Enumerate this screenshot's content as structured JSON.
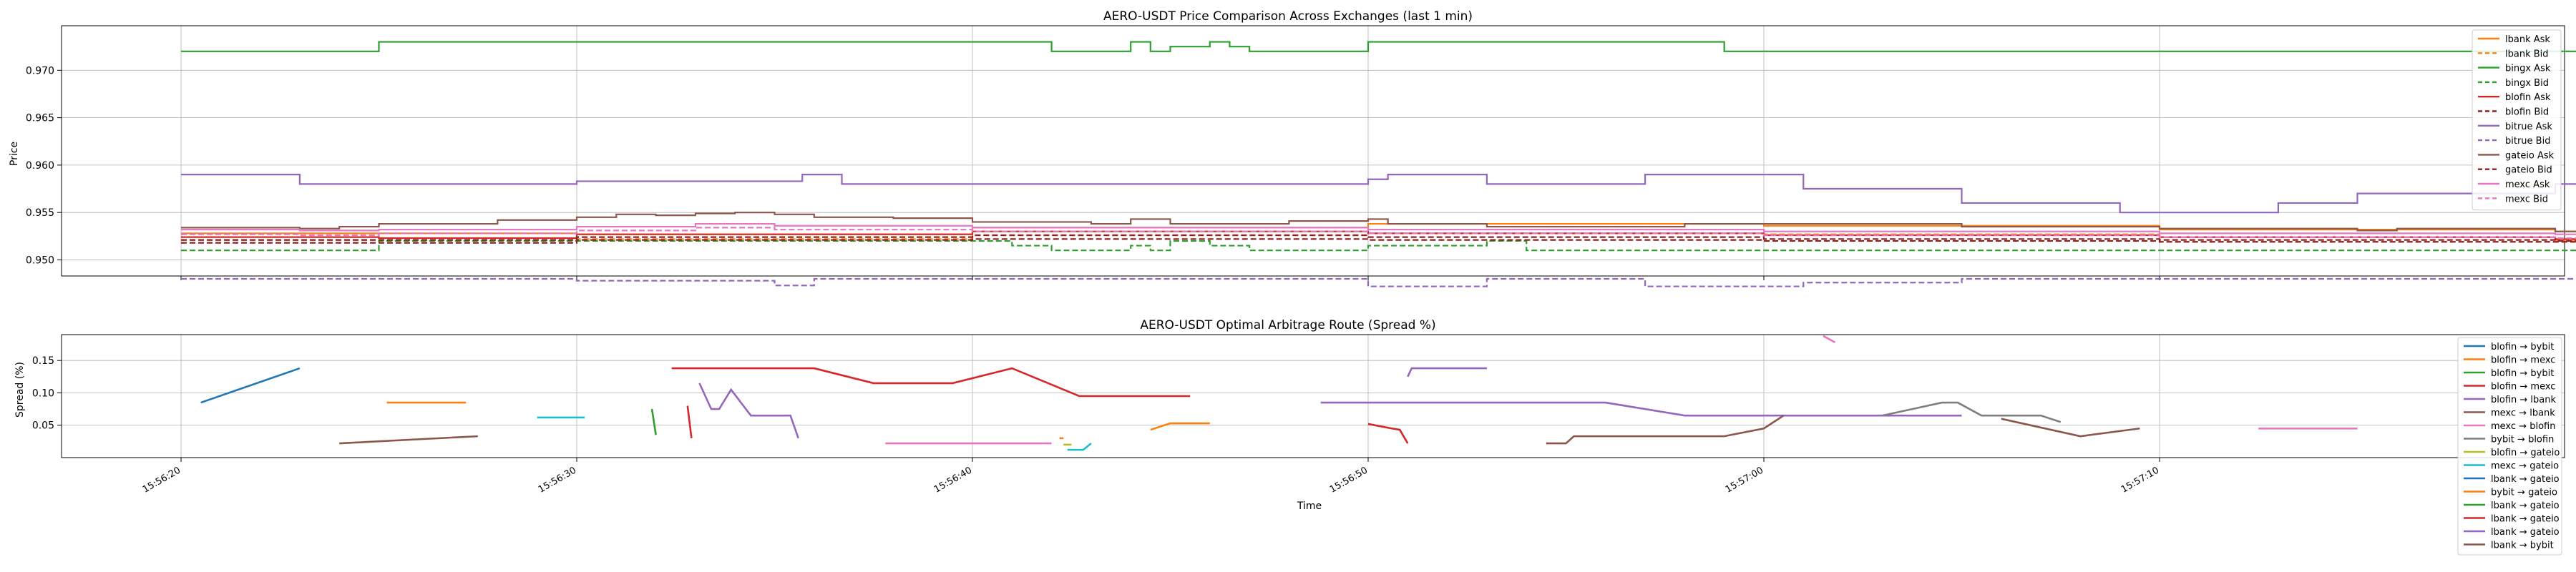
{
  "chart_data": [
    {
      "type": "line",
      "title": "AERO-USDT Price Comparison Across Exchanges (last 1 min)",
      "xlabel": "",
      "ylabel": "Price",
      "ylim": [
        0.9483,
        0.9747
      ],
      "yticks": [
        0.95,
        0.955,
        0.96,
        0.965,
        0.97
      ],
      "ytick_labels": [
        "0.950",
        "0.955",
        "0.960",
        "0.965",
        "0.970"
      ],
      "grid": true,
      "legend_position": "top-right",
      "series": [
        {
          "name": "lbank Ask",
          "color": "#ff7f0e",
          "dash": false,
          "x": [
            0,
            10,
            20,
            30,
            40,
            50,
            60,
            70,
            79
          ],
          "y": [
            0.9528,
            0.9527,
            0.9534,
            0.9538,
            0.9536,
            0.9532,
            0.953,
            0.9526,
            0.9524
          ]
        },
        {
          "name": "lbank Bid",
          "color": "#ff7f0e",
          "dash": true,
          "x": [
            0,
            10,
            20,
            30,
            40,
            50,
            60,
            70,
            79
          ],
          "y": [
            0.9521,
            0.9522,
            0.9526,
            0.9528,
            0.9527,
            0.9524,
            0.9521,
            0.9518,
            0.9512
          ]
        },
        {
          "name": "bingx Ask",
          "color": "#2ca02c",
          "dash": false,
          "x": [
            0,
            4.5,
            5,
            10,
            20,
            21,
            22,
            23.5,
            24,
            24.5,
            25,
            26,
            26.5,
            27,
            28,
            29,
            30,
            32,
            33,
            34,
            38,
            39,
            42,
            45,
            49,
            50,
            51,
            60,
            70,
            80
          ],
          "y": [
            0.972,
            0.972,
            0.973,
            0.973,
            0.973,
            0.973,
            0.972,
            0.972,
            0.973,
            0.972,
            0.9725,
            0.973,
            0.9725,
            0.972,
            0.972,
            0.972,
            0.973,
            0.973,
            0.973,
            0.973,
            0.973,
            0.972,
            0.972,
            0.972,
            0.972,
            0.972,
            0.972,
            0.972,
            0.972,
            0.972
          ]
        },
        {
          "name": "bingx Bid",
          "color": "#2ca02c",
          "dash": true,
          "x": [
            0,
            4,
            5,
            10,
            20,
            21,
            22,
            23.5,
            24,
            24.5,
            25,
            26,
            27,
            28,
            30,
            33,
            34,
            40,
            50,
            60,
            70,
            79
          ],
          "y": [
            0.951,
            0.951,
            0.952,
            0.952,
            0.952,
            0.9515,
            0.951,
            0.951,
            0.9515,
            0.951,
            0.952,
            0.9515,
            0.951,
            0.951,
            0.9515,
            0.952,
            0.951,
            0.951,
            0.951,
            0.951,
            0.951,
            0.951
          ]
        },
        {
          "name": "blofin Ask",
          "color": "#d62728",
          "dash": false,
          "x": [
            0,
            5,
            10,
            20,
            30,
            40,
            50,
            60,
            65,
            70,
            72,
            73,
            74
          ],
          "y": [
            0.9524,
            0.9523,
            0.9527,
            0.953,
            0.9528,
            0.9526,
            0.9524,
            0.9522,
            0.952,
            0.9518,
            0.9516,
            0.9516,
            0.9515
          ]
        },
        {
          "name": "blofin Bid",
          "color": "#8c1f1f",
          "dash": true,
          "x": [
            0,
            5,
            10,
            20,
            30,
            40,
            50,
            60,
            70,
            80
          ],
          "y": [
            0.9521,
            0.9521,
            0.9524,
            0.9526,
            0.9524,
            0.9522,
            0.9521,
            0.952,
            0.952,
            0.952
          ]
        },
        {
          "name": "bitrue Ask",
          "color": "#9467bd",
          "dash": false,
          "x": [
            0,
            3,
            8,
            10,
            15.7,
            16.7,
            20,
            25,
            30,
            30.5,
            33,
            37,
            41,
            45,
            49,
            51,
            53,
            55,
            60,
            65,
            70,
            72,
            73,
            74,
            75,
            76
          ],
          "y": [
            0.959,
            0.958,
            0.958,
            0.9583,
            0.959,
            0.958,
            0.958,
            0.958,
            0.9585,
            0.959,
            0.958,
            0.959,
            0.9575,
            0.956,
            0.955,
            0.955,
            0.956,
            0.957,
            0.958,
            0.956,
            0.955,
            0.955,
            0.956,
            0.956,
            0.956,
            0.956
          ]
        },
        {
          "name": "bitrue Bid",
          "color": "#9467bd",
          "dash": true,
          "x": [
            0,
            5,
            8,
            10,
            15,
            16,
            20,
            25,
            30,
            33,
            37,
            41,
            45,
            50,
            55,
            60,
            65,
            70,
            75
          ],
          "y": [
            0.948,
            0.948,
            0.948,
            0.9478,
            0.9473,
            0.948,
            0.948,
            0.948,
            0.9472,
            0.948,
            0.9472,
            0.9476,
            0.948,
            0.948,
            0.948,
            0.948,
            0.948,
            0.948,
            0.948
          ]
        },
        {
          "name": "gateio Ask",
          "color": "#8c564b",
          "dash": false,
          "x": [
            0,
            3,
            4,
            5,
            8,
            10,
            11,
            12,
            13,
            14,
            15,
            16,
            18,
            20,
            23,
            24,
            25,
            28,
            30,
            30.5,
            33,
            36,
            38,
            42,
            45,
            50,
            55,
            56,
            60,
            70,
            75,
            80
          ],
          "y": [
            0.9534,
            0.9533,
            0.9535,
            0.9538,
            0.9542,
            0.9545,
            0.9548,
            0.9547,
            0.9549,
            0.955,
            0.9548,
            0.9545,
            0.9544,
            0.954,
            0.9538,
            0.9543,
            0.9538,
            0.9541,
            0.9543,
            0.9538,
            0.9535,
            0.9535,
            0.9538,
            0.9538,
            0.9535,
            0.9533,
            0.9531,
            0.9533,
            0.953,
            0.9527,
            0.9533,
            0.9533
          ]
        },
        {
          "name": "gateio Bid",
          "color": "#8c1f1f",
          "dash": true,
          "x": [
            0,
            5,
            10,
            20,
            30,
            40,
            50,
            60,
            70,
            80
          ],
          "y": [
            0.9518,
            0.9518,
            0.9521,
            0.9522,
            0.9521,
            0.952,
            0.9519,
            0.9519,
            0.9519,
            0.9519
          ]
        },
        {
          "name": "mexc Ask",
          "color": "#e377c2",
          "dash": false,
          "x": [
            0,
            3,
            5,
            10,
            13,
            15,
            20,
            30,
            40,
            50,
            60,
            70,
            76
          ],
          "y": [
            0.9532,
            0.9531,
            0.9532,
            0.9535,
            0.9538,
            0.9536,
            0.9534,
            0.9532,
            0.953,
            0.9528,
            0.9527,
            0.9525,
            0.9524
          ]
        },
        {
          "name": "mexc Bid",
          "color": "#e377c2",
          "dash": true,
          "x": [
            0,
            3,
            5,
            10,
            13,
            15,
            20,
            30,
            40,
            50,
            60,
            70,
            76
          ],
          "y": [
            0.9527,
            0.9526,
            0.9528,
            0.9531,
            0.9534,
            0.9532,
            0.953,
            0.9528,
            0.9526,
            0.9524,
            0.9523,
            0.9522,
            0.9521
          ]
        }
      ]
    },
    {
      "type": "line",
      "title": "AERO-USDT Optimal Arbitrage Route (Spread %)",
      "xlabel": "Time",
      "ylabel": "Spread (%)",
      "ylim": [
        0.0,
        0.19
      ],
      "yticks": [
        0.05,
        0.1,
        0.15
      ],
      "ytick_labels": [
        "0.05",
        "0.10",
        "0.15"
      ],
      "grid": true,
      "legend_position": "top-right",
      "series": [
        {
          "name": "blofin → bybit",
          "color": "#1f77b4",
          "segments": [
            [
              [
                0.5,
                0.085
              ],
              [
                3.0,
                0.138
              ]
            ]
          ]
        },
        {
          "name": "blofin → mexc",
          "color": "#ff7f0e",
          "segments": [
            [
              [
                5.2,
                0.085
              ],
              [
                7.2,
                0.085
              ]
            ]
          ]
        },
        {
          "name": "blofin → bybit",
          "color": "#2ca02c",
          "segments": [
            [
              [
                11.9,
                0.075
              ],
              [
                12.0,
                0.035
              ]
            ]
          ]
        },
        {
          "name": "blofin → mexc",
          "color": "#d62728",
          "segments": [
            [
              [
                12.8,
                0.08
              ],
              [
                12.9,
                0.03
              ]
            ],
            [
              [
                12.4,
                0.138
              ],
              [
                16.0,
                0.138
              ],
              [
                17.5,
                0.115
              ],
              [
                19.5,
                0.115
              ],
              [
                21.0,
                0.138
              ],
              [
                22.7,
                0.095
              ],
              [
                25.5,
                0.095
              ]
            ]
          ]
        },
        {
          "name": "blofin → lbank",
          "color": "#9467bd",
          "segments": [
            [
              [
                13.1,
                0.115
              ],
              [
                13.4,
                0.075
              ],
              [
                13.6,
                0.075
              ],
              [
                13.9,
                0.105
              ],
              [
                14.4,
                0.065
              ],
              [
                15.0,
                0.065
              ],
              [
                15.4,
                0.065
              ],
              [
                15.6,
                0.03
              ]
            ],
            [
              [
                28.8,
                0.085
              ],
              [
                36.0,
                0.085
              ],
              [
                38.0,
                0.065
              ],
              [
                42.0,
                0.065
              ],
              [
                45.0,
                0.065
              ]
            ],
            [
              [
                31.0,
                0.125
              ],
              [
                31.1,
                0.138
              ],
              [
                33.0,
                0.138
              ]
            ]
          ]
        },
        {
          "name": "mexc → lbank",
          "color": "#8c564b",
          "segments": [
            [
              [
                4.0,
                0.022
              ],
              [
                7.5,
                0.033
              ]
            ],
            [
              [
                34.5,
                0.022
              ],
              [
                35.0,
                0.022
              ],
              [
                35.2,
                0.033
              ],
              [
                37.0,
                0.033
              ],
              [
                39.0,
                0.033
              ],
              [
                40.0,
                0.045
              ],
              [
                40.5,
                0.065
              ]
            ],
            [
              [
                46.0,
                0.06
              ],
              [
                48.0,
                0.033
              ],
              [
                49.5,
                0.045
              ]
            ]
          ]
        },
        {
          "name": "mexc → blofin",
          "color": "#e377c2",
          "segments": [
            [
              [
                17.8,
                0.022
              ],
              [
                22.0,
                0.022
              ]
            ],
            [
              [
                41.5,
                0.188
              ],
              [
                41.8,
                0.178
              ]
            ],
            [
              [
                52.5,
                0.045
              ],
              [
                55.0,
                0.045
              ]
            ]
          ]
        },
        {
          "name": "bybit → blofin",
          "color": "#7f7f7f",
          "segments": [
            [
              [
                43.0,
                0.065
              ],
              [
                44.5,
                0.085
              ],
              [
                44.9,
                0.085
              ],
              [
                45.5,
                0.065
              ],
              [
                47.0,
                0.065
              ],
              [
                47.5,
                0.055
              ]
            ]
          ]
        },
        {
          "name": "blofin → gateio",
          "color": "#bcbd22",
          "segments": [
            [
              [
                22.3,
                0.02
              ],
              [
                22.5,
                0.02
              ]
            ]
          ]
        },
        {
          "name": "mexc → gateio",
          "color": "#17becf",
          "segments": [
            [
              [
                9.0,
                0.062
              ],
              [
                10.2,
                0.062
              ]
            ],
            [
              [
                22.4,
                0.012
              ],
              [
                22.8,
                0.012
              ],
              [
                23.0,
                0.022
              ]
            ]
          ]
        },
        {
          "name": "lbank → gateio",
          "color": "#1f77b4",
          "segments": []
        },
        {
          "name": "bybit → gateio",
          "color": "#ff7f0e",
          "segments": [
            [
              [
                22.2,
                0.03
              ],
              [
                22.3,
                0.03
              ]
            ],
            [
              [
                24.5,
                0.043
              ],
              [
                25.0,
                0.053
              ],
              [
                26.0,
                0.053
              ]
            ]
          ]
        },
        {
          "name": "lbank → gateio",
          "color": "#2ca02c",
          "segments": []
        },
        {
          "name": "lbank → gateio",
          "color": "#d62728",
          "segments": [
            [
              [
                30.0,
                0.052
              ],
              [
                30.6,
                0.045
              ],
              [
                30.8,
                0.043
              ],
              [
                31.0,
                0.022
              ]
            ]
          ]
        },
        {
          "name": "lbank → gateio",
          "color": "#9467bd",
          "segments": []
        },
        {
          "name": "lbank → bybit",
          "color": "#8c564b",
          "segments": []
        }
      ],
      "x_ticks": [
        0,
        10,
        20,
        30,
        40,
        50
      ],
      "x_tick_labels": [
        "15:56:20",
        "15:56:30",
        "15:56:40",
        "15:56:50",
        "15:57:00",
        "15:57:10"
      ]
    }
  ]
}
